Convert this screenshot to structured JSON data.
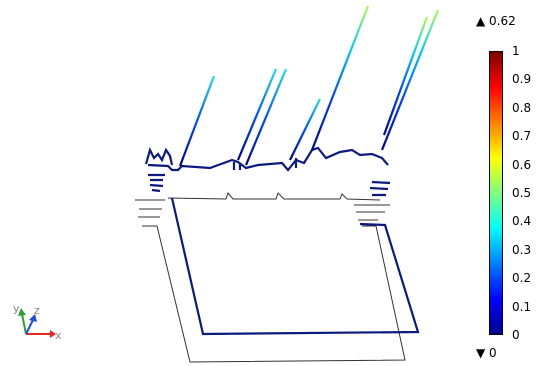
{
  "chart_data": {
    "type": "3d-line-plot",
    "colorbar": {
      "ticks": [
        "1",
        "0.9",
        "0.8",
        "0.7",
        "0.6",
        "0.5",
        "0.4",
        "0.3",
        "0.2",
        "0.1",
        "0"
      ],
      "range": [
        0,
        1
      ],
      "colormap": "jet",
      "max_label": "▲ 0.62",
      "min_label": "▼ 0"
    },
    "axes_triad": {
      "x": "x",
      "y": "y",
      "z": "z"
    },
    "colors": {
      "outline": "#333333",
      "low": "#00008f",
      "mid": "#00bfff",
      "high": "#c8ff37",
      "x_axis": "#e6261f",
      "y_axis": "#2ca02c",
      "z_axis": "#1f4fd8"
    }
  }
}
